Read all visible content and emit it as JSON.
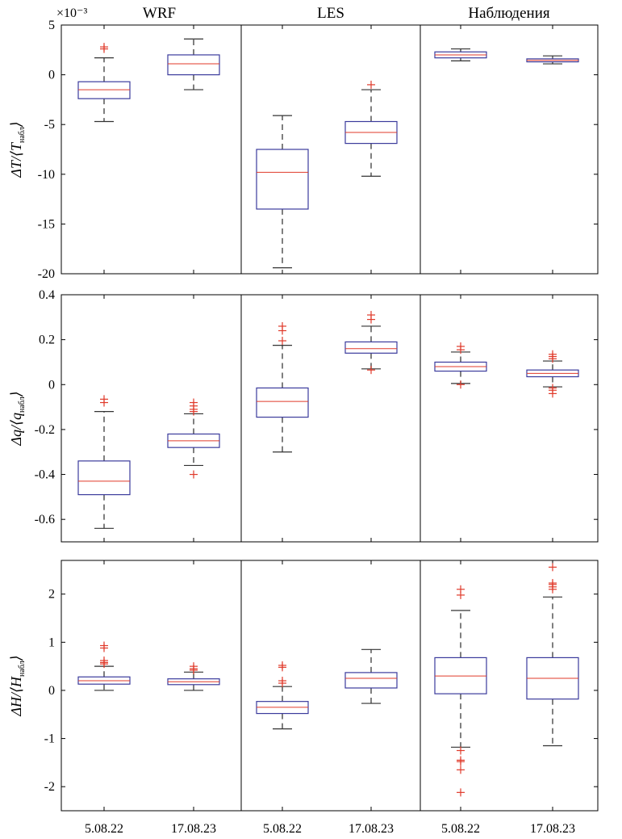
{
  "chart_data": [
    {
      "type": "box",
      "ylabel": {
        "prefix": "ΔT/⟨T",
        "sub": "набл",
        "suffix": "⟩"
      },
      "ylim": [
        -20,
        5
      ],
      "yticks": [
        5,
        0,
        -5,
        -10,
        -15,
        -20
      ],
      "ytick_labels": [
        "5",
        "0",
        "-5",
        "-10",
        "-15",
        "-20"
      ],
      "exponent_label": "×10⁻³",
      "boxes": [
        {
          "group": "WRF",
          "date": "5.08.22",
          "whisker_low": -4.7,
          "q1": -2.4,
          "median": -1.5,
          "q3": -0.7,
          "whisker_high": 1.7,
          "outliers": [
            2.6,
            2.8
          ]
        },
        {
          "group": "WRF",
          "date": "17.08.23",
          "whisker_low": -1.5,
          "q1": 0.0,
          "median": 1.1,
          "q3": 2.0,
          "whisker_high": 3.6,
          "outliers": []
        },
        {
          "group": "LES",
          "date": "5.08.22",
          "whisker_low": -19.4,
          "q1": -13.5,
          "median": -9.8,
          "q3": -7.5,
          "whisker_high": -4.1,
          "outliers": []
        },
        {
          "group": "LES",
          "date": "17.08.23",
          "whisker_low": -10.2,
          "q1": -6.9,
          "median": -5.8,
          "q3": -4.7,
          "whisker_high": -1.5,
          "outliers": [
            -1.0
          ]
        },
        {
          "group": "Наблюдения",
          "date": "5.08.22",
          "whisker_low": 1.4,
          "q1": 1.7,
          "median": 2.0,
          "q3": 2.3,
          "whisker_high": 2.6,
          "outliers": []
        },
        {
          "group": "Наблюдения",
          "date": "17.08.23",
          "whisker_low": 1.1,
          "q1": 1.3,
          "median": 1.45,
          "q3": 1.6,
          "whisker_high": 1.9,
          "outliers": []
        }
      ]
    },
    {
      "type": "box",
      "ylabel": {
        "prefix": "Δq/⟨q",
        "sub": "набл",
        "suffix": "⟩"
      },
      "ylim": [
        -0.7,
        0.4
      ],
      "yticks": [
        0.4,
        0.2,
        0,
        -0.2,
        -0.4,
        -0.6
      ],
      "ytick_labels": [
        "0.4",
        "0.2",
        "0",
        "-0.2",
        "-0.4",
        "-0.6"
      ],
      "boxes": [
        {
          "group": "WRF",
          "date": "5.08.22",
          "whisker_low": -0.64,
          "q1": -0.49,
          "median": -0.43,
          "q3": -0.34,
          "whisker_high": -0.12,
          "outliers": [
            -0.08,
            -0.065
          ]
        },
        {
          "group": "WRF",
          "date": "17.08.23",
          "whisker_low": -0.36,
          "q1": -0.28,
          "median": -0.25,
          "q3": -0.22,
          "whisker_high": -0.13,
          "outliers": [
            -0.12,
            -0.11,
            -0.095,
            -0.08,
            -0.4
          ]
        },
        {
          "group": "LES",
          "date": "5.08.22",
          "whisker_low": -0.3,
          "q1": -0.145,
          "median": -0.075,
          "q3": -0.015,
          "whisker_high": 0.175,
          "outliers": [
            0.195,
            0.24,
            0.26
          ]
        },
        {
          "group": "LES",
          "date": "17.08.23",
          "whisker_low": 0.07,
          "q1": 0.14,
          "median": 0.16,
          "q3": 0.19,
          "whisker_high": 0.26,
          "outliers": [
            0.065,
            0.29,
            0.31
          ]
        },
        {
          "group": "Наблюдения",
          "date": "5.08.22",
          "whisker_low": 0.005,
          "q1": 0.06,
          "median": 0.08,
          "q3": 0.1,
          "whisker_high": 0.145,
          "outliers": [
            0.155,
            0.17,
            0.0
          ]
        },
        {
          "group": "Наблюдения",
          "date": "17.08.23",
          "whisker_low": -0.01,
          "q1": 0.035,
          "median": 0.05,
          "q3": 0.065,
          "whisker_high": 0.105,
          "outliers": [
            0.115,
            0.125,
            0.135,
            -0.015,
            -0.025,
            -0.04
          ]
        }
      ]
    },
    {
      "type": "box",
      "ylabel": {
        "prefix": "ΔH/⟨H",
        "sub": "набл",
        "suffix": "⟩"
      },
      "ylim": [
        -2.5,
        2.7
      ],
      "yticks": [
        2,
        1,
        0,
        -1,
        -2
      ],
      "ytick_labels": [
        "2",
        "1",
        "0",
        "-1",
        "-2"
      ],
      "boxes": [
        {
          "group": "WRF",
          "date": "5.08.22",
          "whisker_low": 0.0,
          "q1": 0.13,
          "median": 0.2,
          "q3": 0.28,
          "whisker_high": 0.5,
          "outliers": [
            0.55,
            0.58,
            0.62,
            0.88,
            0.93
          ]
        },
        {
          "group": "WRF",
          "date": "17.08.23",
          "whisker_low": 0.0,
          "q1": 0.12,
          "median": 0.18,
          "q3": 0.24,
          "whisker_high": 0.38,
          "outliers": [
            0.42,
            0.45,
            0.5
          ]
        },
        {
          "group": "LES",
          "date": "5.08.22",
          "whisker_low": -0.8,
          "q1": -0.48,
          "median": -0.35,
          "q3": -0.23,
          "whisker_high": 0.08,
          "outliers": [
            0.15,
            0.2,
            0.48,
            0.52
          ]
        },
        {
          "group": "LES",
          "date": "17.08.23",
          "whisker_low": -0.27,
          "q1": 0.05,
          "median": 0.25,
          "q3": 0.37,
          "whisker_high": 0.85,
          "outliers": []
        },
        {
          "group": "Наблюдения",
          "date": "5.08.22",
          "whisker_low": -1.18,
          "q1": -0.07,
          "median": 0.3,
          "q3": 0.68,
          "whisker_high": 1.66,
          "outliers": [
            1.98,
            2.1,
            -1.25,
            -1.45,
            -1.48,
            -1.65,
            -2.12
          ]
        },
        {
          "group": "Наблюдения",
          "date": "17.08.23",
          "whisker_low": -1.15,
          "q1": -0.18,
          "median": 0.25,
          "q3": 0.68,
          "whisker_high": 1.94,
          "outliers": [
            2.1,
            2.15,
            2.2,
            2.23,
            2.56
          ]
        }
      ]
    }
  ],
  "groups": [
    "WRF",
    "LES",
    "Наблюдения"
  ],
  "dates": [
    "5.08.22",
    "17.08.23"
  ],
  "colors": {
    "box": "#3b3b9c",
    "median": "#e03a2a",
    "whisker": "#555555",
    "outlier": "#e03a2a",
    "axis": "#000000"
  }
}
